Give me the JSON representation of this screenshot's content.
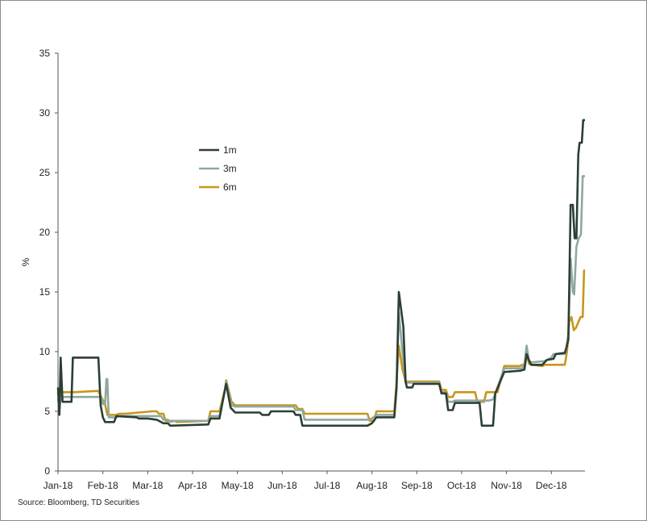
{
  "chart_data": {
    "type": "line",
    "xlabel": "",
    "ylabel": "%",
    "ylim": [
      0,
      35
    ],
    "yticks": [
      0,
      5,
      10,
      15,
      20,
      25,
      30,
      35
    ],
    "x_tick_labels": [
      "Jan-18",
      "Feb-18",
      "Mar-18",
      "Apr-18",
      "May-18",
      "Jun-18",
      "Jul-18",
      "Aug-18",
      "Sep-18",
      "Oct-18",
      "Nov-18",
      "Dec-18"
    ],
    "xlim_months": [
      0,
      11.75
    ],
    "grid": false,
    "legend_position": "upper-left-center",
    "series": [
      {
        "name": "1m",
        "color": "#2b3f35",
        "points": [
          [
            0.0,
            7.0
          ],
          [
            0.03,
            4.7
          ],
          [
            0.06,
            9.5
          ],
          [
            0.1,
            5.8
          ],
          [
            0.3,
            5.8
          ],
          [
            0.33,
            9.5
          ],
          [
            0.9,
            9.5
          ],
          [
            0.95,
            5.5
          ],
          [
            1.0,
            4.5
          ],
          [
            1.05,
            4.1
          ],
          [
            1.25,
            4.1
          ],
          [
            1.3,
            4.6
          ],
          [
            1.75,
            4.5
          ],
          [
            1.8,
            4.4
          ],
          [
            2.0,
            4.4
          ],
          [
            2.2,
            4.3
          ],
          [
            2.35,
            4.0
          ],
          [
            2.45,
            4.0
          ],
          [
            2.5,
            3.8
          ],
          [
            3.35,
            3.9
          ],
          [
            3.4,
            4.4
          ],
          [
            3.6,
            4.4
          ],
          [
            3.72,
            6.8
          ],
          [
            3.75,
            7.3
          ],
          [
            3.85,
            5.3
          ],
          [
            3.95,
            4.9
          ],
          [
            4.5,
            4.9
          ],
          [
            4.55,
            4.7
          ],
          [
            4.7,
            4.7
          ],
          [
            4.75,
            5.0
          ],
          [
            5.25,
            5.0
          ],
          [
            5.3,
            4.7
          ],
          [
            5.4,
            4.7
          ],
          [
            5.45,
            3.8
          ],
          [
            6.9,
            3.8
          ],
          [
            7.0,
            4.0
          ],
          [
            7.1,
            4.5
          ],
          [
            7.5,
            4.5
          ],
          [
            7.55,
            7.0
          ],
          [
            7.6,
            15.0
          ],
          [
            7.7,
            12.1
          ],
          [
            7.75,
            7.5
          ],
          [
            7.78,
            7.0
          ],
          [
            7.9,
            7.0
          ],
          [
            7.93,
            7.3
          ],
          [
            8.5,
            7.3
          ],
          [
            8.55,
            6.5
          ],
          [
            8.65,
            6.5
          ],
          [
            8.7,
            5.1
          ],
          [
            8.8,
            5.1
          ],
          [
            8.85,
            5.7
          ],
          [
            9.4,
            5.7
          ],
          [
            9.45,
            3.8
          ],
          [
            9.7,
            3.8
          ],
          [
            9.75,
            6.5
          ],
          [
            9.95,
            8.3
          ],
          [
            10.3,
            8.4
          ],
          [
            10.4,
            8.5
          ],
          [
            10.45,
            9.8
          ],
          [
            10.5,
            9.3
          ],
          [
            10.55,
            8.9
          ],
          [
            10.8,
            8.9
          ],
          [
            10.9,
            9.3
          ],
          [
            11.05,
            9.4
          ],
          [
            11.1,
            9.8
          ],
          [
            11.3,
            9.9
          ],
          [
            11.35,
            10.5
          ],
          [
            11.38,
            11.0
          ],
          [
            11.43,
            22.3
          ],
          [
            11.48,
            22.3
          ],
          [
            11.52,
            19.5
          ],
          [
            11.56,
            19.5
          ],
          [
            11.6,
            26.5
          ],
          [
            11.63,
            27.5
          ],
          [
            11.68,
            27.5
          ],
          [
            11.71,
            29.4
          ],
          [
            11.75,
            29.4
          ]
        ]
      },
      {
        "name": "3m",
        "color": "#8fa89f",
        "points": [
          [
            0.0,
            6.1
          ],
          [
            0.03,
            4.9
          ],
          [
            0.06,
            6.2
          ],
          [
            0.1,
            6.2
          ],
          [
            0.35,
            6.2
          ],
          [
            0.95,
            6.2
          ],
          [
            1.0,
            5.6
          ],
          [
            1.05,
            5.6
          ],
          [
            1.08,
            7.7
          ],
          [
            1.1,
            7.7
          ],
          [
            1.13,
            4.5
          ],
          [
            1.3,
            4.5
          ],
          [
            1.35,
            4.6
          ],
          [
            2.3,
            4.6
          ],
          [
            2.35,
            4.3
          ],
          [
            2.45,
            4.3
          ],
          [
            2.5,
            4.1
          ],
          [
            2.6,
            4.2
          ],
          [
            3.35,
            4.2
          ],
          [
            3.4,
            4.6
          ],
          [
            3.6,
            4.6
          ],
          [
            3.72,
            6.7
          ],
          [
            3.75,
            7.5
          ],
          [
            3.87,
            5.5
          ],
          [
            3.95,
            5.4
          ],
          [
            5.25,
            5.4
          ],
          [
            5.3,
            5.1
          ],
          [
            5.45,
            5.1
          ],
          [
            5.5,
            4.3
          ],
          [
            6.9,
            4.3
          ],
          [
            7.0,
            4.4
          ],
          [
            7.1,
            4.7
          ],
          [
            7.5,
            4.7
          ],
          [
            7.55,
            7.0
          ],
          [
            7.6,
            13.3
          ],
          [
            7.68,
            10.0
          ],
          [
            7.75,
            7.4
          ],
          [
            8.5,
            7.4
          ],
          [
            8.55,
            6.6
          ],
          [
            8.65,
            6.6
          ],
          [
            8.7,
            5.8
          ],
          [
            8.8,
            5.8
          ],
          [
            8.85,
            5.9
          ],
          [
            9.6,
            5.9
          ],
          [
            9.7,
            6.0
          ],
          [
            9.8,
            7.0
          ],
          [
            9.95,
            8.6
          ],
          [
            10.35,
            8.6
          ],
          [
            10.4,
            9.0
          ],
          [
            10.45,
            10.5
          ],
          [
            10.5,
            9.3
          ],
          [
            10.55,
            9.1
          ],
          [
            10.85,
            9.2
          ],
          [
            11.0,
            9.5
          ],
          [
            11.05,
            9.8
          ],
          [
            11.3,
            9.8
          ],
          [
            11.33,
            10.2
          ],
          [
            11.38,
            11.5
          ],
          [
            11.43,
            17.8
          ],
          [
            11.48,
            15.0
          ],
          [
            11.51,
            14.8
          ],
          [
            11.56,
            18.8
          ],
          [
            11.61,
            19.5
          ],
          [
            11.66,
            19.8
          ],
          [
            11.7,
            24.7
          ],
          [
            11.75,
            24.7
          ]
        ]
      },
      {
        "name": "6m",
        "color": "#c9961a",
        "points": [
          [
            0.0,
            6.6
          ],
          [
            0.03,
            5.5
          ],
          [
            0.06,
            6.6
          ],
          [
            0.1,
            6.6
          ],
          [
            0.35,
            6.6
          ],
          [
            0.85,
            6.7
          ],
          [
            0.9,
            6.7
          ],
          [
            0.95,
            6.3
          ],
          [
            1.05,
            5.6
          ],
          [
            1.1,
            4.7
          ],
          [
            1.3,
            4.7
          ],
          [
            1.35,
            4.8
          ],
          [
            1.5,
            4.8
          ],
          [
            1.8,
            4.9
          ],
          [
            2.1,
            5.0
          ],
          [
            2.2,
            5.0
          ],
          [
            2.25,
            4.8
          ],
          [
            2.35,
            4.8
          ],
          [
            2.4,
            4.2
          ],
          [
            2.6,
            4.2
          ],
          [
            2.65,
            4.1
          ],
          [
            3.35,
            4.2
          ],
          [
            3.4,
            5.0
          ],
          [
            3.6,
            5.0
          ],
          [
            3.72,
            6.8
          ],
          [
            3.75,
            7.6
          ],
          [
            3.87,
            5.8
          ],
          [
            3.95,
            5.5
          ],
          [
            5.3,
            5.5
          ],
          [
            5.35,
            5.2
          ],
          [
            5.45,
            5.2
          ],
          [
            5.5,
            4.8
          ],
          [
            6.9,
            4.8
          ],
          [
            6.95,
            4.2
          ],
          [
            7.05,
            4.2
          ],
          [
            7.1,
            5.0
          ],
          [
            7.5,
            5.0
          ],
          [
            7.55,
            7.5
          ],
          [
            7.6,
            10.5
          ],
          [
            7.68,
            8.5
          ],
          [
            7.75,
            7.5
          ],
          [
            8.5,
            7.5
          ],
          [
            8.55,
            6.8
          ],
          [
            8.65,
            6.8
          ],
          [
            8.7,
            6.2
          ],
          [
            8.8,
            6.2
          ],
          [
            8.85,
            6.6
          ],
          [
            9.3,
            6.6
          ],
          [
            9.35,
            5.8
          ],
          [
            9.5,
            5.8
          ],
          [
            9.55,
            6.6
          ],
          [
            9.8,
            6.6
          ],
          [
            9.95,
            8.8
          ],
          [
            10.3,
            8.8
          ],
          [
            10.35,
            8.9
          ],
          [
            10.4,
            8.9
          ],
          [
            10.45,
            9.9
          ],
          [
            10.5,
            9.0
          ],
          [
            10.55,
            8.9
          ],
          [
            10.8,
            8.8
          ],
          [
            10.85,
            8.9
          ],
          [
            11.3,
            8.9
          ],
          [
            11.35,
            10.0
          ],
          [
            11.4,
            12.5
          ],
          [
            11.45,
            12.9
          ],
          [
            11.5,
            11.8
          ],
          [
            11.55,
            12.0
          ],
          [
            11.65,
            12.9
          ],
          [
            11.7,
            12.9
          ],
          [
            11.73,
            16.8
          ],
          [
            11.75,
            16.8
          ]
        ]
      }
    ]
  },
  "footer": {
    "source": "Source: Bloomberg, TD Securities"
  }
}
